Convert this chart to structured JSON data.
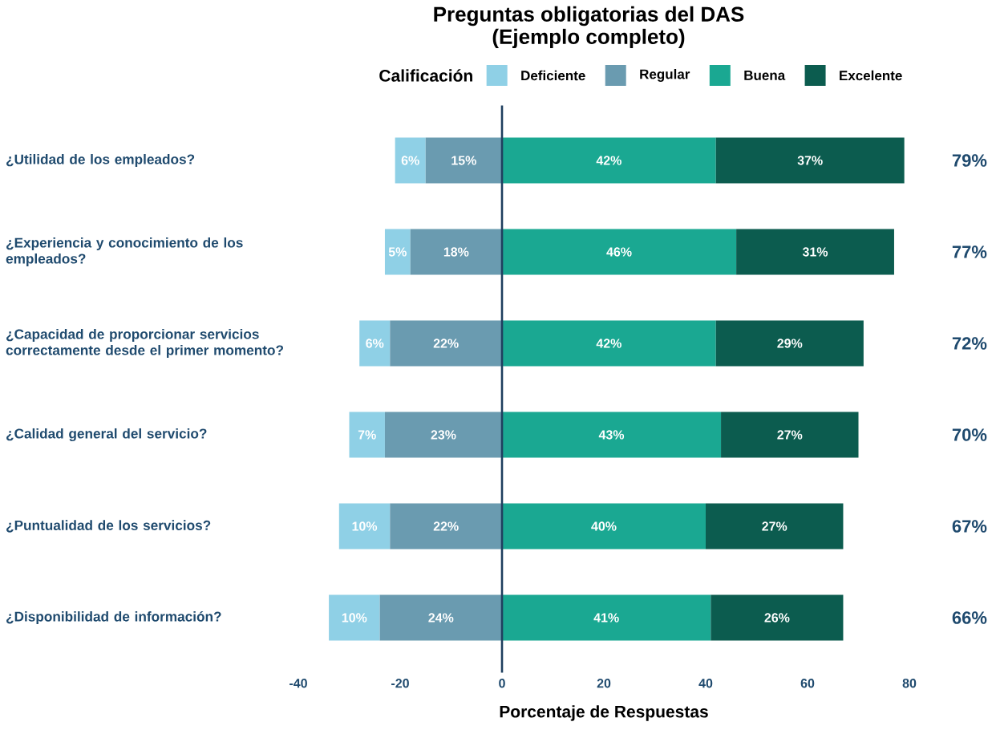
{
  "chart_data": {
    "type": "bar",
    "orientation": "horizontal",
    "title": "Preguntas obligatorias del DAS",
    "subtitle": "(Ejemplo completo)",
    "xlabel": "Porcentaje de Respuestas",
    "legend_title": "Calificación",
    "legend": "top",
    "categories": [
      "¿Utilidad de los empleados?",
      "¿Experiencia y conocimiento de los empleados?",
      "¿Capacidad de proporcionar servicios correctamente desde el primer momento?",
      "¿Calidad general del servicio?",
      "¿Puntualidad de los servicios?",
      "¿Disponibilidad de información?"
    ],
    "series": [
      {
        "name": "Deficiente",
        "color": "#8fd0e6",
        "values": [
          6,
          5,
          6,
          7,
          10,
          10
        ],
        "base": [
          -21,
          -23,
          -28,
          -30,
          -32,
          -34
        ],
        "value_labels": [
          "6%",
          "5%",
          "6%",
          "7%",
          "10%",
          "10%"
        ]
      },
      {
        "name": "Regular",
        "color": "#6a9bb0",
        "values": [
          15,
          18,
          22,
          23,
          22,
          24
        ],
        "base": [
          -15,
          -18,
          -22,
          -23,
          -22,
          -24
        ],
        "value_labels": [
          "15%",
          "18%",
          "22%",
          "23%",
          "22%",
          "24%"
        ]
      },
      {
        "name": "Buena",
        "color": "#1aa892",
        "values": [
          42,
          46,
          42,
          43,
          40,
          41
        ],
        "base": [
          0,
          0,
          0,
          0,
          0,
          0
        ],
        "value_labels": [
          "42%",
          "46%",
          "42%",
          "43%",
          "40%",
          "41%"
        ]
      },
      {
        "name": "Excelente",
        "color": "#0c5c4f",
        "values": [
          37,
          31,
          29,
          27,
          27,
          26
        ],
        "base": [
          42,
          46,
          42,
          43,
          40,
          41
        ],
        "value_labels": [
          "37%",
          "31%",
          "29%",
          "27%",
          "27%",
          "26%"
        ]
      }
    ],
    "annotations": [
      "79%",
      "77%",
      "72%",
      "70%",
      "67%",
      "66%"
    ],
    "xlim": [
      -40,
      80
    ],
    "xticks": [
      -40,
      -20,
      0,
      20,
      40,
      60,
      80
    ],
    "ref_lines": [
      {
        "axis": "x",
        "value": 0,
        "color": "#1f3f5f"
      }
    ]
  }
}
